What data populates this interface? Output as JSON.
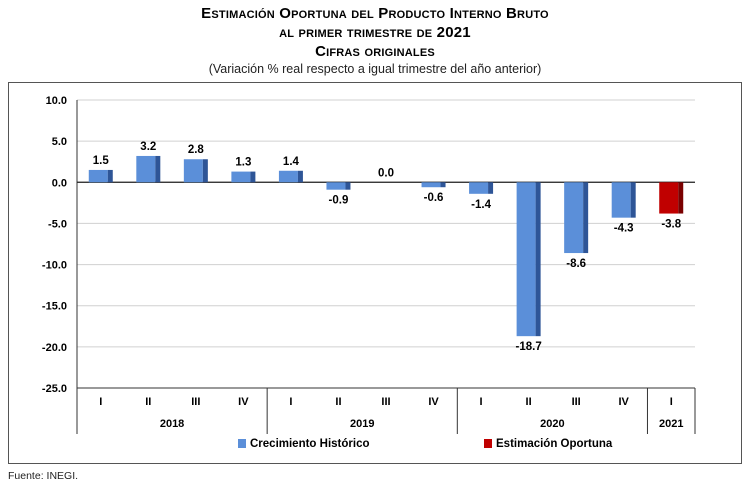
{
  "title": {
    "line1": "Estimación Oportuna del Producto Interno Bruto",
    "line2": "al primer trimestre de 2021",
    "line3": "Cifras originales",
    "subtitle": "(Variación % real respecto a igual trimestre del año anterior)"
  },
  "source": "Fuente: INEGI.",
  "chart_data": {
    "type": "bar",
    "title": "Estimación Oportuna del Producto Interno Bruto al primer trimestre de 2021 — Cifras originales",
    "subtitle": "(Variación % real respecto a igual trimestre del año anterior)",
    "xlabel": "",
    "ylabel": "",
    "ylim": [
      -25.0,
      10.0
    ],
    "yticks": [
      "10.0",
      "5.0",
      "0.0",
      "-5.0",
      "-10.0",
      "-15.0",
      "-20.0",
      "-25.0"
    ],
    "ytick_values": [
      10,
      5,
      0,
      -5,
      -10,
      -15,
      -20,
      -25
    ],
    "grid": true,
    "legend_position": "bottom",
    "categories": [
      "I",
      "II",
      "III",
      "IV",
      "I",
      "II",
      "III",
      "IV",
      "I",
      "II",
      "III",
      "IV",
      "I"
    ],
    "years": [
      {
        "label": "2018",
        "count": 4
      },
      {
        "label": "2019",
        "count": 4
      },
      {
        "label": "2020",
        "count": 4
      },
      {
        "label": "2021",
        "count": 1
      }
    ],
    "values": [
      1.5,
      3.2,
      2.8,
      1.3,
      1.4,
      -0.9,
      0.0,
      -0.6,
      -1.4,
      -18.7,
      -8.6,
      -4.3,
      -3.8
    ],
    "value_labels": [
      "1.5",
      "3.2",
      "2.8",
      "1.3",
      "1.4",
      "-0.9",
      "0.0",
      "-0.6",
      "-1.4",
      "-18.7",
      "-8.6",
      "-4.3",
      "-3.8"
    ],
    "bar_series": [
      "historico",
      "historico",
      "historico",
      "historico",
      "historico",
      "historico",
      "historico",
      "historico",
      "historico",
      "historico",
      "historico",
      "historico",
      "estimacion"
    ],
    "series": [
      {
        "key": "historico",
        "name": "Crecimiento  Histórico",
        "color": "#5B8FD9",
        "side_color": "#2E5597"
      },
      {
        "key": "estimacion",
        "name": "Estimación Oportuna",
        "color": "#C00000",
        "side_color": "#7A0000"
      }
    ]
  }
}
